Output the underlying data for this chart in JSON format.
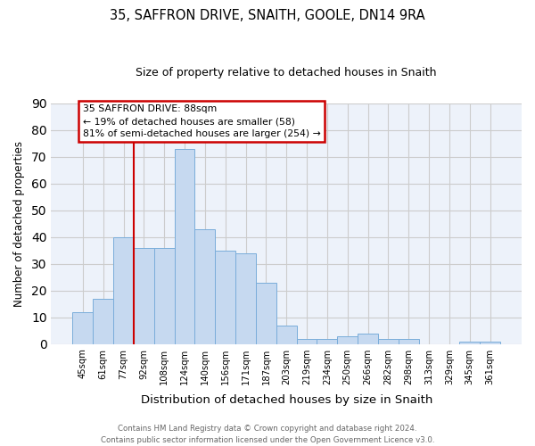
{
  "title1": "35, SAFFRON DRIVE, SNAITH, GOOLE, DN14 9RA",
  "title2": "Size of property relative to detached houses in Snaith",
  "xlabel": "Distribution of detached houses by size in Snaith",
  "ylabel": "Number of detached properties",
  "categories": [
    "45sqm",
    "61sqm",
    "77sqm",
    "92sqm",
    "108sqm",
    "124sqm",
    "140sqm",
    "156sqm",
    "171sqm",
    "187sqm",
    "203sqm",
    "219sqm",
    "234sqm",
    "250sqm",
    "266sqm",
    "282sqm",
    "298sqm",
    "313sqm",
    "329sqm",
    "345sqm",
    "361sqm"
  ],
  "values": [
    12,
    17,
    40,
    36,
    36,
    73,
    43,
    35,
    34,
    23,
    7,
    2,
    2,
    3,
    4,
    2,
    2,
    0,
    0,
    1,
    1
  ],
  "bar_color": "#c6d9f0",
  "bar_edge_color": "#7aadda",
  "grid_color": "#cccccc",
  "vline_x": 2.5,
  "vline_color": "#cc0000",
  "annotation_text": "35 SAFFRON DRIVE: 88sqm\n← 19% of detached houses are smaller (58)\n81% of semi-detached houses are larger (254) →",
  "annotation_box_color": "#cc0000",
  "ylim": [
    0,
    90
  ],
  "yticks": [
    0,
    10,
    20,
    30,
    40,
    50,
    60,
    70,
    80,
    90
  ],
  "footnote": "Contains HM Land Registry data © Crown copyright and database right 2024.\nContains public sector information licensed under the Open Government Licence v3.0.",
  "bg_color": "#edf2fa"
}
